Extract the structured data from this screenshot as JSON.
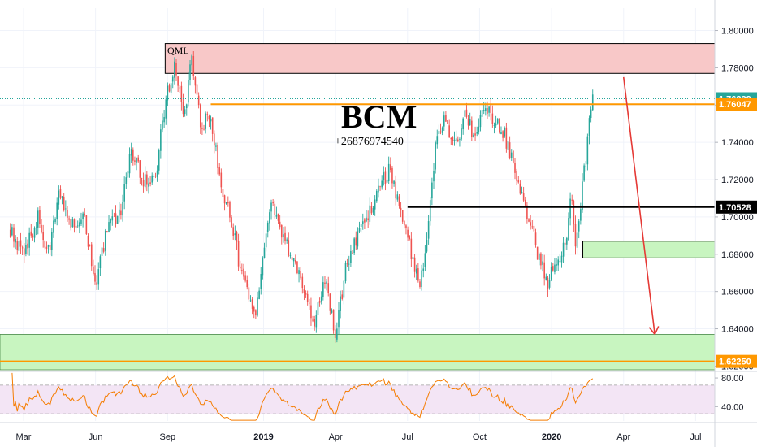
{
  "chart_data": {
    "type": "candlestick",
    "instrument_note": "",
    "title": "BCM",
    "subtitle": "+26876974540",
    "annotation_qml": "QML",
    "ylim": [
      1.618,
      1.812
    ],
    "y_ticks": [
      "1.80000",
      "1.78000",
      "1.76000",
      "1.74000",
      "1.72000",
      "1.70000",
      "1.68000",
      "1.66000",
      "1.64000",
      "1.62000"
    ],
    "y_tick_values": [
      1.8,
      1.78,
      1.76,
      1.74,
      1.72,
      1.7,
      1.68,
      1.66,
      1.64,
      1.62
    ],
    "x_ticks": [
      {
        "label": "Mar",
        "month": 0,
        "major": false
      },
      {
        "label": "Jun",
        "month": 3,
        "major": false
      },
      {
        "label": "Sep",
        "month": 6,
        "major": false
      },
      {
        "label": "2019",
        "month": 10,
        "major": true
      },
      {
        "label": "Apr",
        "month": 13,
        "major": false
      },
      {
        "label": "Jul",
        "month": 16,
        "major": false
      },
      {
        "label": "Oct",
        "month": 19,
        "major": false
      },
      {
        "label": "2020",
        "month": 22,
        "major": true
      },
      {
        "label": "Apr",
        "month": 25,
        "major": false
      },
      {
        "label": "Jul",
        "month": 28,
        "major": false
      }
    ],
    "price_path": [
      [
        -0.6,
        1.695
      ],
      [
        0.0,
        1.68
      ],
      [
        0.6,
        1.7
      ],
      [
        1.0,
        1.678
      ],
      [
        1.5,
        1.712
      ],
      [
        2.0,
        1.695
      ],
      [
        2.5,
        1.702
      ],
      [
        3.0,
        1.663
      ],
      [
        3.5,
        1.694
      ],
      [
        4.0,
        1.7
      ],
      [
        4.5,
        1.735
      ],
      [
        5.0,
        1.718
      ],
      [
        5.5,
        1.722
      ],
      [
        5.9,
        1.762
      ],
      [
        6.3,
        1.78
      ],
      [
        6.7,
        1.752
      ],
      [
        7.0,
        1.788
      ],
      [
        7.4,
        1.748
      ],
      [
        7.8,
        1.755
      ],
      [
        8.2,
        1.72
      ],
      [
        8.6,
        1.7
      ],
      [
        9.0,
        1.675
      ],
      [
        9.6,
        1.645
      ],
      [
        10.0,
        1.68
      ],
      [
        10.3,
        1.708
      ],
      [
        10.8,
        1.688
      ],
      [
        11.5,
        1.67
      ],
      [
        12.1,
        1.642
      ],
      [
        12.6,
        1.668
      ],
      [
        13.0,
        1.634
      ],
      [
        13.4,
        1.672
      ],
      [
        14.0,
        1.692
      ],
      [
        14.8,
        1.715
      ],
      [
        15.3,
        1.726
      ],
      [
        15.6,
        1.708
      ],
      [
        16.0,
        1.69
      ],
      [
        16.5,
        1.662
      ],
      [
        16.8,
        1.69
      ],
      [
        17.2,
        1.742
      ],
      [
        17.6,
        1.752
      ],
      [
        18.0,
        1.738
      ],
      [
        18.4,
        1.756
      ],
      [
        18.8,
        1.742
      ],
      [
        19.1,
        1.762
      ],
      [
        19.5,
        1.752
      ],
      [
        20.0,
        1.746
      ],
      [
        20.5,
        1.722
      ],
      [
        21.0,
        1.7
      ],
      [
        21.4,
        1.682
      ],
      [
        21.8,
        1.664
      ],
      [
        22.2,
        1.676
      ],
      [
        22.6,
        1.688
      ],
      [
        22.8,
        1.715
      ],
      [
        23.0,
        1.682
      ],
      [
        23.2,
        1.706
      ],
      [
        23.5,
        1.74
      ],
      [
        23.75,
        1.772
      ]
    ],
    "seed": 9,
    "rsi": {
      "ylim": [
        20,
        88
      ],
      "y_ticks": [
        "80.00",
        "40.00"
      ],
      "y_tick_values": [
        80,
        40
      ],
      "band": [
        30,
        70
      ],
      "color": "#f57c00",
      "band_color": "#f3e5f5"
    },
    "zones": {
      "upper_red_zone": {
        "y_top": 1.793,
        "y_bottom": 1.777,
        "month_start": 5.9,
        "color": "#f8c8c8"
      },
      "lower_green_zone": {
        "y_top": 1.637,
        "y_bottom": 1.617,
        "color": "#c8f5c0"
      },
      "small_green_zone": {
        "y_top": 1.687,
        "y_bottom": 1.678,
        "month_start": 23.3,
        "color": "#c8f5c0"
      }
    },
    "lines": {
      "orange_upper": {
        "value": 1.76047,
        "month_start": 7.8,
        "color": "#ff9800"
      },
      "black_mid": {
        "value": 1.70528,
        "month_start": 16.0,
        "color": "#000000"
      },
      "orange_lower": {
        "value": 1.6225,
        "color": "#ff9800"
      },
      "current_dotted": {
        "value": 1.76339,
        "color": "#26a69a"
      }
    },
    "arrow": {
      "from_month": 25.0,
      "from_value": 1.775,
      "to_month": 26.3,
      "to_value": 1.637,
      "color": "#e53935"
    },
    "price_tags": [
      {
        "label": "1.76339",
        "value": 1.76339,
        "bg": "#26a69a",
        "fg": "#ffffff"
      },
      {
        "label": "1.76047",
        "value": 1.76047,
        "bg": "#ff9800",
        "fg": "#ffffff"
      },
      {
        "label": "1.70528",
        "value": 1.70528,
        "bg": "#000000",
        "fg": "#ffffff"
      },
      {
        "label": "1.62250",
        "value": 1.6225,
        "bg": "#ff9800",
        "fg": "#ffffff"
      }
    ],
    "colors": {
      "up": "#26a69a",
      "down": "#ef5350",
      "grid": "#f0f3fa"
    }
  }
}
